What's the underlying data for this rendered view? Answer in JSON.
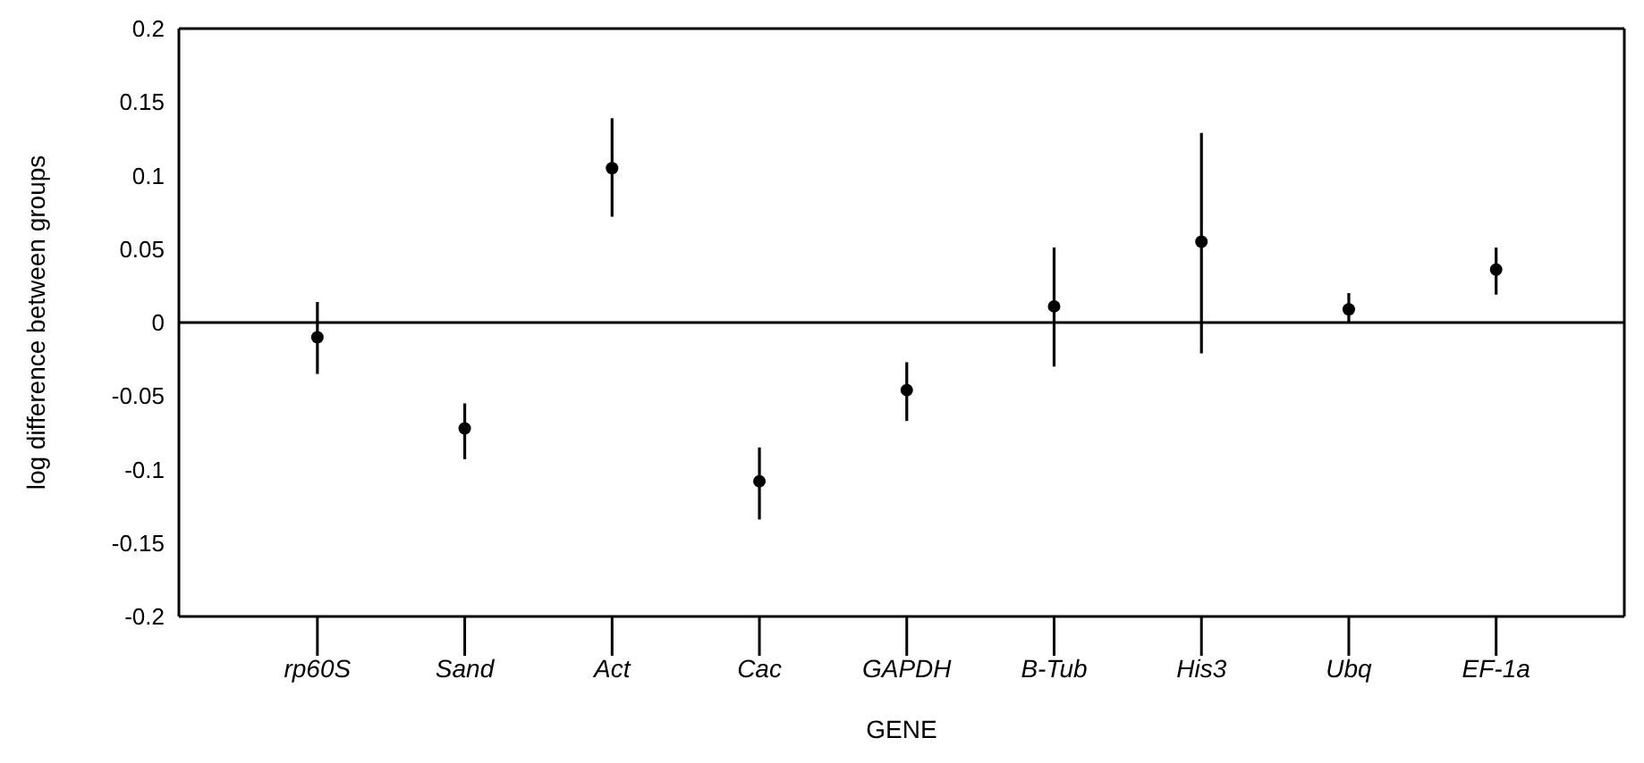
{
  "chart_data": {
    "type": "scatter",
    "categories": [
      "rp60S",
      "Sand",
      "Act",
      "Cac",
      "GAPDH",
      "B-Tub",
      "His3",
      "Ubq",
      "EF-1a"
    ],
    "values": [
      -0.01,
      -0.072,
      0.105,
      -0.108,
      -0.046,
      0.011,
      0.055,
      0.009,
      0.036
    ],
    "errors": [
      [
        -0.035,
        0.014
      ],
      [
        -0.093,
        -0.055
      ],
      [
        0.072,
        0.139
      ],
      [
        -0.134,
        -0.085
      ],
      [
        -0.067,
        -0.027
      ],
      [
        -0.03,
        0.051
      ],
      [
        -0.021,
        0.129
      ],
      [
        0,
        0.02
      ],
      [
        0.019,
        0.051
      ]
    ],
    "color": "#000000",
    "marker": "circle",
    "xlabel": "GENE",
    "ylabel": "log difference between groups",
    "ylim": [
      -0.2,
      0.2
    ],
    "yticks": [
      -0.2,
      -0.15,
      -0.1,
      -0.05,
      0,
      0.05,
      0.1,
      0.15,
      0.2
    ],
    "ref_lines": [
      {
        "axis": "y",
        "value": 0,
        "color": "#000000"
      }
    ],
    "grid": false,
    "legend": false
  }
}
